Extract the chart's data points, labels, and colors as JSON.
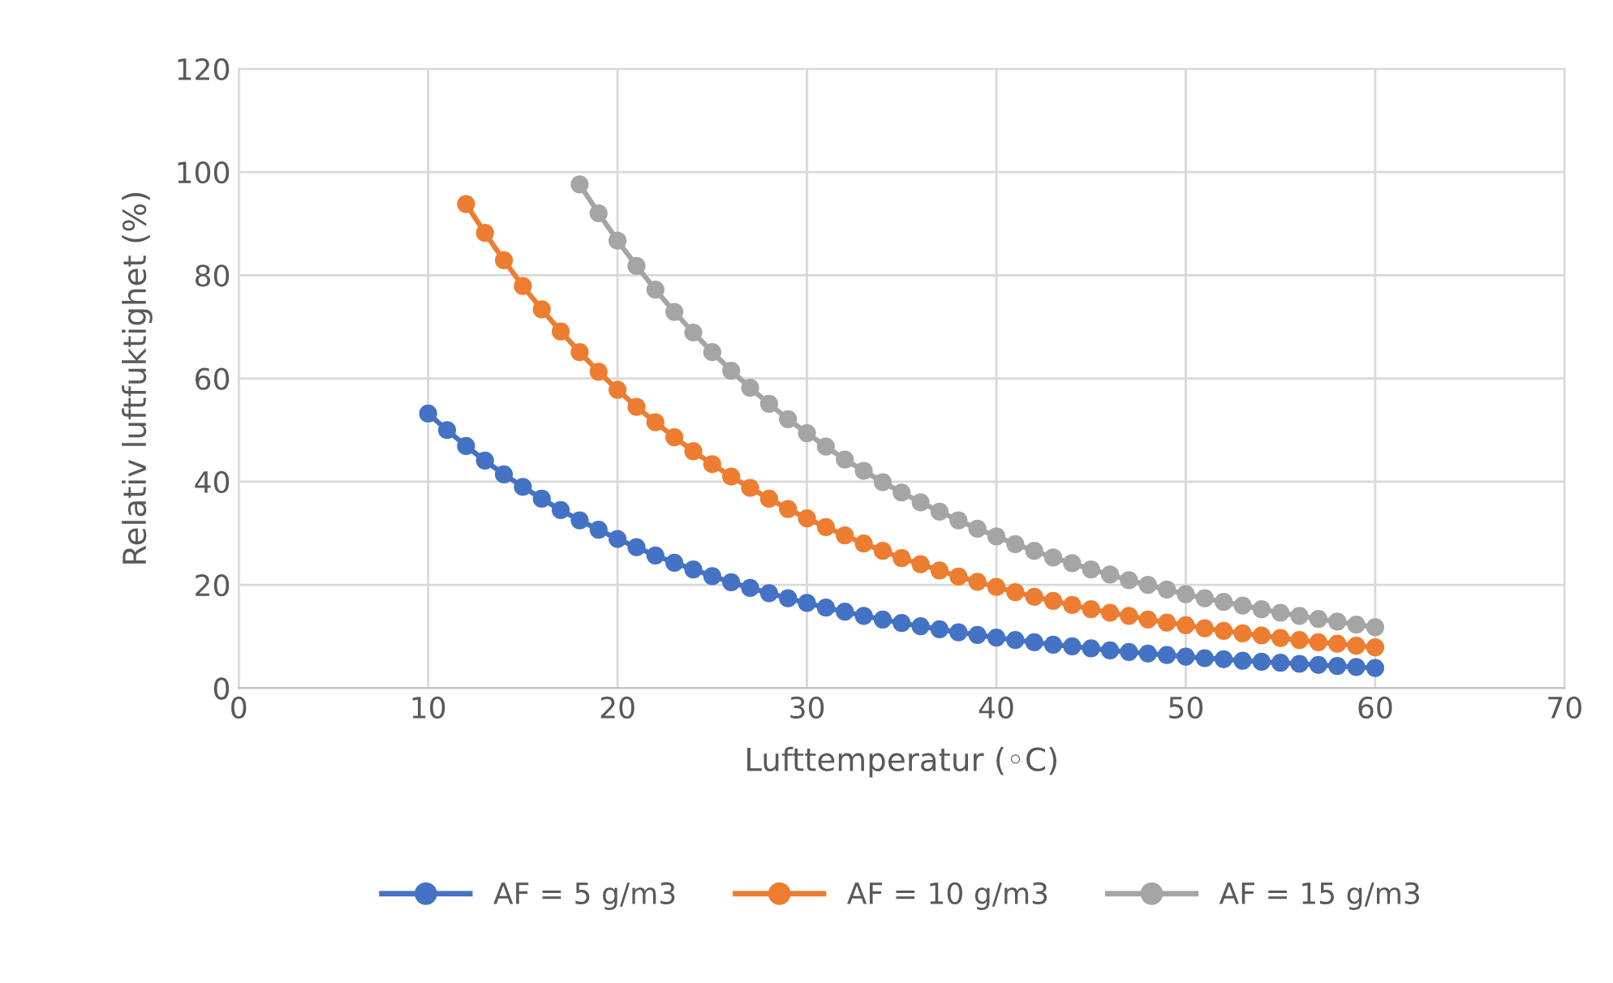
{
  "chart_data": {
    "type": "line",
    "xlabel": "Lufttemperatur (◦C)",
    "ylabel": "Relativ luftfuktighet (%)",
    "xlim": [
      0,
      70
    ],
    "xticks": [
      0,
      10,
      20,
      30,
      40,
      50,
      60,
      70
    ],
    "ylim": [
      0,
      120
    ],
    "yticks": [
      0,
      20,
      40,
      60,
      80,
      100,
      120
    ],
    "grid": true,
    "legend": "bottom",
    "marker": "circle",
    "line_style": "solid",
    "series": [
      {
        "name": "AF = 5 g/m3",
        "color": "#4472c4",
        "x": [
          10,
          11,
          12,
          13,
          14,
          15,
          16,
          17,
          18,
          19,
          20,
          21,
          22,
          23,
          24,
          25,
          26,
          27,
          28,
          29,
          30,
          31,
          32,
          33,
          34,
          35,
          36,
          37,
          38,
          39,
          40,
          41,
          42,
          43,
          44,
          45,
          46,
          47,
          48,
          49,
          50,
          51,
          52,
          53,
          54,
          55,
          56,
          57,
          58,
          59,
          60
        ],
        "values": [
          53.2,
          50.0,
          46.9,
          44.1,
          41.4,
          39.0,
          36.7,
          34.5,
          32.5,
          30.7,
          28.9,
          27.3,
          25.7,
          24.3,
          23.0,
          21.7,
          20.5,
          19.4,
          18.4,
          17.4,
          16.5,
          15.6,
          14.8,
          14.0,
          13.3,
          12.6,
          12.0,
          11.4,
          10.8,
          10.3,
          9.8,
          9.3,
          8.9,
          8.4,
          8.1,
          7.7,
          7.3,
          7.0,
          6.7,
          6.4,
          6.1,
          5.8,
          5.6,
          5.3,
          5.1,
          4.9,
          4.7,
          4.5,
          4.3,
          4.1,
          3.9
        ]
      },
      {
        "name": "AF = 10 g/m3",
        "color": "#ed7d31",
        "x": [
          12,
          13,
          14,
          15,
          16,
          17,
          18,
          19,
          20,
          21,
          22,
          23,
          24,
          25,
          26,
          27,
          28,
          29,
          30,
          31,
          32,
          33,
          34,
          35,
          36,
          37,
          38,
          39,
          40,
          41,
          42,
          43,
          44,
          45,
          46,
          47,
          48,
          49,
          50,
          51,
          52,
          53,
          54,
          55,
          56,
          57,
          58,
          59,
          60
        ],
        "values": [
          93.8,
          88.2,
          82.9,
          77.9,
          73.4,
          69.1,
          65.1,
          61.3,
          57.8,
          54.5,
          51.5,
          48.6,
          45.9,
          43.4,
          41.0,
          38.8,
          36.7,
          34.7,
          32.9,
          31.2,
          29.6,
          28.0,
          26.6,
          25.2,
          24.0,
          22.8,
          21.6,
          20.6,
          19.6,
          18.6,
          17.7,
          16.9,
          16.1,
          15.3,
          14.6,
          14.0,
          13.3,
          12.7,
          12.2,
          11.6,
          11.1,
          10.6,
          10.2,
          9.7,
          9.3,
          8.9,
          8.6,
          8.2,
          7.9
        ]
      },
      {
        "name": "AF = 15 g/m3",
        "color": "#a5a5a5",
        "x": [
          18,
          19,
          20,
          21,
          22,
          23,
          24,
          25,
          26,
          27,
          28,
          29,
          30,
          31,
          32,
          33,
          34,
          35,
          36,
          37,
          38,
          39,
          40,
          41,
          42,
          43,
          44,
          45,
          46,
          47,
          48,
          49,
          50,
          51,
          52,
          53,
          54,
          55,
          56,
          57,
          58,
          59,
          60
        ],
        "values": [
          97.6,
          92.0,
          86.7,
          81.8,
          77.2,
          72.9,
          68.9,
          65.1,
          61.5,
          58.2,
          55.1,
          52.1,
          49.4,
          46.8,
          44.3,
          42.1,
          39.9,
          37.9,
          36.0,
          34.2,
          32.5,
          30.9,
          29.4,
          27.9,
          26.6,
          25.3,
          24.2,
          23.0,
          22.0,
          20.9,
          20.0,
          19.1,
          18.2,
          17.4,
          16.7,
          16.0,
          15.3,
          14.6,
          14.0,
          13.4,
          12.9,
          12.3,
          11.8
        ]
      }
    ]
  }
}
